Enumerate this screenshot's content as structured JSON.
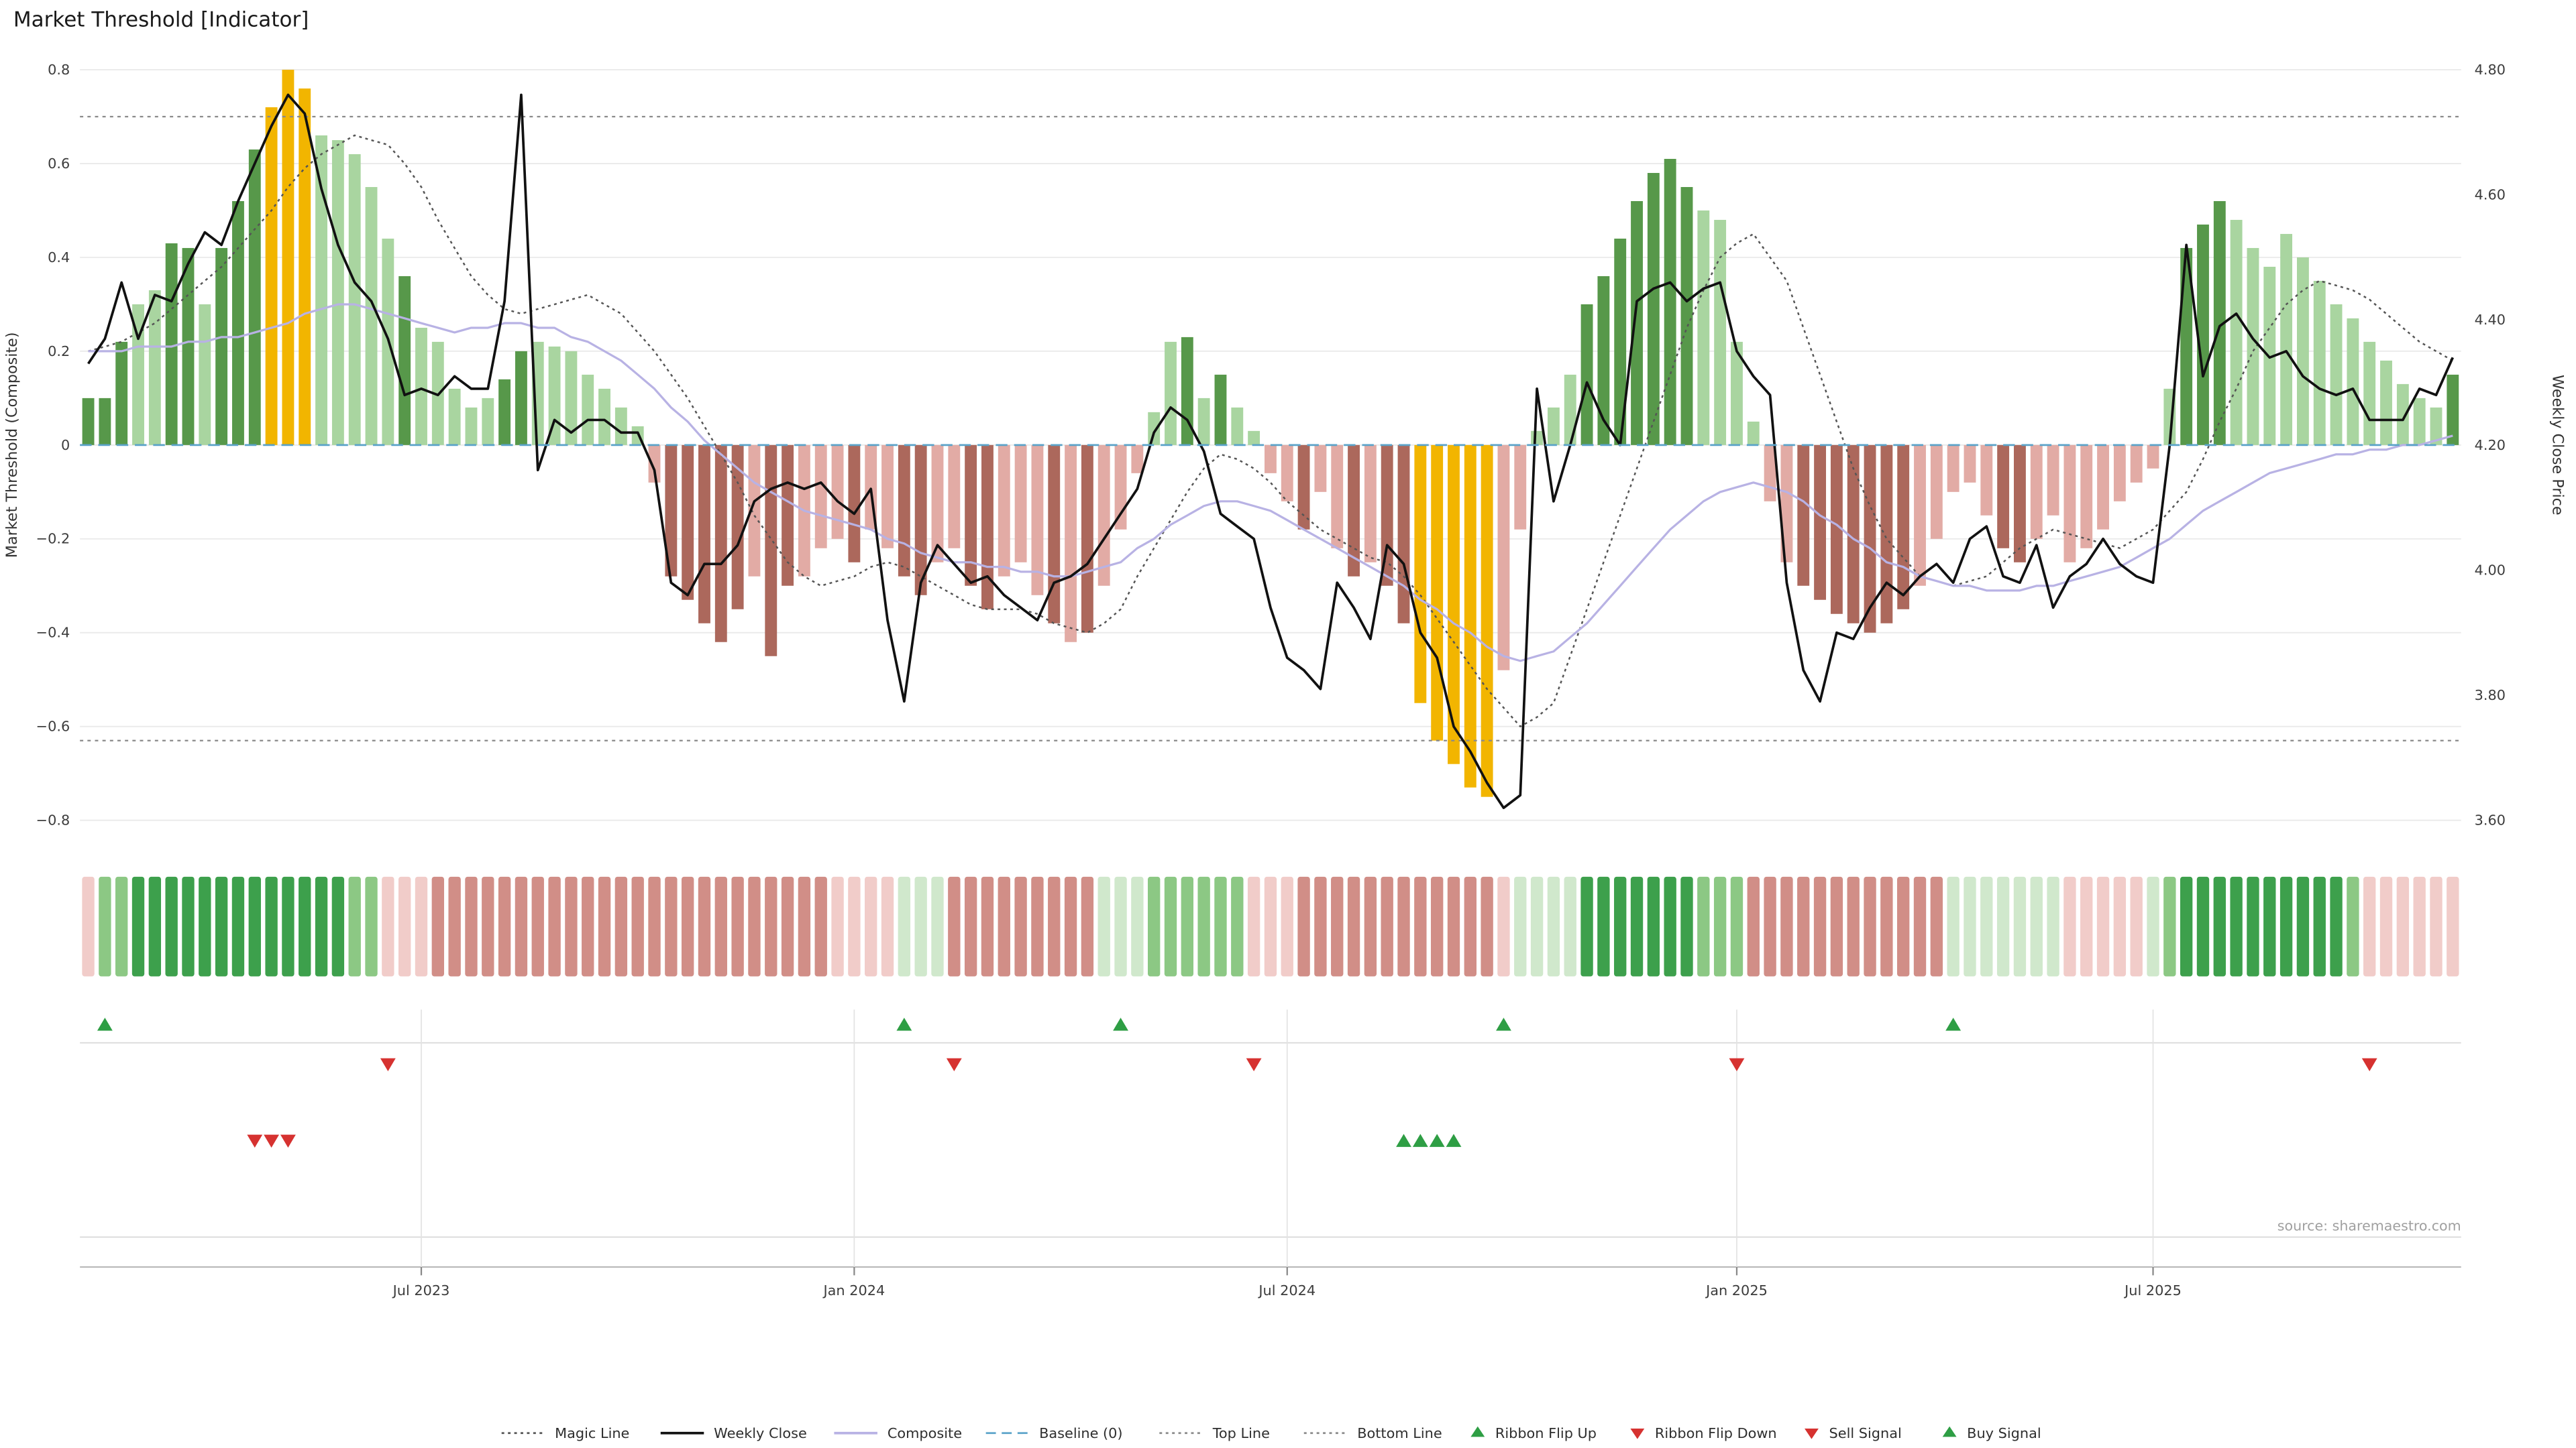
{
  "title": "Market Threshold [Indicator]",
  "source": "source: sharemaestro.com",
  "axes": {
    "left_label": "Market Threshold (Composite)",
    "right_label": "Weekly Close Price",
    "left_ticks": [
      -0.8,
      -0.6,
      -0.4,
      -0.2,
      0,
      0.2,
      0.4,
      0.6,
      0.8
    ],
    "right_ticks": [
      "3.60",
      "3.80",
      "4.00",
      "4.20",
      "4.40",
      "4.60",
      "4.80"
    ],
    "x_ticks": [
      {
        "i": 20,
        "label": "Jul 2023"
      },
      {
        "i": 46,
        "label": "Jan 2024"
      },
      {
        "i": 72,
        "label": "Jul 2024"
      },
      {
        "i": 99,
        "label": "Jan 2025"
      },
      {
        "i": 124,
        "label": "Jul 2025"
      }
    ]
  },
  "colors": {
    "bars": {
      "g1": "#a9d5a0",
      "g2": "#57984a",
      "au": "#f2b500",
      "r1": "#e2aba5",
      "r2": "#ac685c"
    },
    "ribbon": {
      "p": "#f1ccc9",
      "R": "#d18e87",
      "g": "#d0e8cc",
      "G": "#8cc884",
      "K": "#3da04c"
    },
    "lines": {
      "weekly_close": "#111111",
      "composite": "#b8b2e4",
      "magic": "#555555",
      "baseline": "#5ba3c9",
      "top_bottom": "#8a8a8a"
    },
    "signals": {
      "up": "#2e9e44",
      "down": "#d63230"
    },
    "grid": "#ebebeb"
  },
  "legend": [
    {
      "label": "Magic Line",
      "swatch": "dotted",
      "color": "#555555"
    },
    {
      "label": "Weekly Close",
      "swatch": "solid",
      "color": "#111111"
    },
    {
      "label": "Composite",
      "swatch": "solid",
      "color": "#b8b2e4"
    },
    {
      "label": "Baseline (0)",
      "swatch": "dashed",
      "color": "#5ba3c9"
    },
    {
      "label": "Top Line",
      "swatch": "dotted",
      "color": "#8a8a8a"
    },
    {
      "label": "Bottom Line",
      "swatch": "dotted",
      "color": "#8a8a8a"
    },
    {
      "label": "Ribbon Flip Up",
      "swatch": "triangle-up",
      "color": "#2e9e44"
    },
    {
      "label": "Ribbon Flip Down",
      "swatch": "triangle-down",
      "color": "#d63230"
    },
    {
      "label": "Sell Signal",
      "swatch": "triangle-down",
      "color": "#d63230"
    },
    {
      "label": "Buy Signal",
      "swatch": "triangle-up",
      "color": "#2e9e44"
    }
  ],
  "chart_data": {
    "type": "bar",
    "title": "Market Threshold [Indicator]",
    "xlabel": "",
    "ylabel_left": "Market Threshold (Composite)",
    "ylabel_right": "Weekly Close Price",
    "ylim_left": [
      -0.8,
      0.8
    ],
    "ylim_right": [
      3.6,
      4.8
    ],
    "x_tick_labels": [
      "Jul 2023",
      "Jan 2024",
      "Jul 2024",
      "Jan 2025",
      "Jul 2025"
    ],
    "ref_lines": {
      "baseline": 0,
      "top_line": 0.7,
      "bottom_line": -0.63
    },
    "threshold_bars": {
      "values": [
        0.1,
        0.1,
        0.22,
        0.3,
        0.33,
        0.43,
        0.42,
        0.3,
        0.42,
        0.52,
        0.63,
        0.72,
        0.8,
        0.76,
        0.66,
        0.65,
        0.62,
        0.55,
        0.44,
        0.36,
        0.25,
        0.22,
        0.12,
        0.08,
        0.1,
        0.14,
        0.2,
        0.22,
        0.21,
        0.2,
        0.15,
        0.12,
        0.08,
        0.04,
        -0.08,
        -0.28,
        -0.33,
        -0.38,
        -0.42,
        -0.35,
        -0.28,
        -0.45,
        -0.3,
        -0.28,
        -0.22,
        -0.2,
        -0.25,
        -0.18,
        -0.22,
        -0.28,
        -0.32,
        -0.25,
        -0.22,
        -0.3,
        -0.35,
        -0.28,
        -0.25,
        -0.32,
        -0.38,
        -0.42,
        -0.4,
        -0.3,
        -0.18,
        -0.06,
        0.07,
        0.22,
        0.23,
        0.1,
        0.15,
        0.08,
        0.03,
        -0.06,
        -0.12,
        -0.18,
        -0.1,
        -0.22,
        -0.28,
        -0.25,
        -0.3,
        -0.38,
        -0.55,
        -0.63,
        -0.68,
        -0.73,
        -0.75,
        -0.48,
        -0.18,
        0.03,
        0.08,
        0.15,
        0.3,
        0.36,
        0.44,
        0.52,
        0.58,
        0.61,
        0.55,
        0.5,
        0.48,
        0.22,
        0.05,
        -0.12,
        -0.25,
        -0.3,
        -0.33,
        -0.36,
        -0.38,
        -0.4,
        -0.38,
        -0.35,
        -0.3,
        -0.2,
        -0.1,
        -0.08,
        -0.15,
        -0.22,
        -0.25,
        -0.2,
        -0.15,
        -0.25,
        -0.22,
        -0.18,
        -0.12,
        -0.08,
        -0.05,
        0.12,
        0.42,
        0.47,
        0.52,
        0.48,
        0.42,
        0.38,
        0.45,
        0.4,
        0.35,
        0.3,
        0.27,
        0.22,
        0.18,
        0.13,
        0.1,
        0.08,
        0.15
      ],
      "colors": [
        "g2",
        "g2",
        "g2",
        "g1",
        "g1",
        "g2",
        "g2",
        "g1",
        "g2",
        "g2",
        "g2",
        "au",
        "au",
        "au",
        "g1",
        "g1",
        "g1",
        "g1",
        "g1",
        "g2",
        "g1",
        "g1",
        "g1",
        "g1",
        "g1",
        "g2",
        "g2",
        "g1",
        "g1",
        "g1",
        "g1",
        "g1",
        "g1",
        "g1",
        "r1",
        "r2",
        "r2",
        "r2",
        "r2",
        "r2",
        "r1",
        "r2",
        "r2",
        "r1",
        "r1",
        "r1",
        "r2",
        "r1",
        "r1",
        "r2",
        "r2",
        "r1",
        "r1",
        "r2",
        "r2",
        "r1",
        "r1",
        "r1",
        "r2",
        "r1",
        "r2",
        "r1",
        "r1",
        "r1",
        "g1",
        "g1",
        "g2",
        "g1",
        "g2",
        "g1",
        "g1",
        "r1",
        "r1",
        "r2",
        "r1",
        "r1",
        "r2",
        "r1",
        "r2",
        "r2",
        "au",
        "au",
        "au",
        "au",
        "au",
        "r1",
        "r1",
        "g1",
        "g1",
        "g1",
        "g2",
        "g2",
        "g2",
        "g2",
        "g2",
        "g2",
        "g2",
        "g1",
        "g1",
        "g1",
        "g1",
        "r1",
        "r1",
        "r2",
        "r2",
        "r2",
        "r2",
        "r2",
        "r2",
        "r2",
        "r1",
        "r1",
        "r1",
        "r1",
        "r1",
        "r2",
        "r2",
        "r1",
        "r1",
        "r1",
        "r1",
        "r1",
        "r1",
        "r1",
        "r1",
        "g1",
        "g2",
        "g2",
        "g2",
        "g1",
        "g1",
        "g1",
        "g1",
        "g1",
        "g1",
        "g1",
        "g1",
        "g1",
        "g1",
        "g1",
        "g1",
        "g1",
        "g2"
      ]
    },
    "series": [
      {
        "name": "Weekly Close",
        "axis": "right",
        "values": [
          4.33,
          4.37,
          4.46,
          4.37,
          4.44,
          4.43,
          4.49,
          4.54,
          4.52,
          4.59,
          4.65,
          4.71,
          4.76,
          4.73,
          4.61,
          4.52,
          4.46,
          4.43,
          4.37,
          4.28,
          4.29,
          4.28,
          4.31,
          4.29,
          4.29,
          4.43,
          4.76,
          4.16,
          4.24,
          4.22,
          4.24,
          4.24,
          4.22,
          4.22,
          4.16,
          3.98,
          3.96,
          4.01,
          4.01,
          4.04,
          4.11,
          4.13,
          4.14,
          4.13,
          4.14,
          4.11,
          4.09,
          4.13,
          3.92,
          3.79,
          3.98,
          4.04,
          4.01,
          3.98,
          3.99,
          3.96,
          3.94,
          3.92,
          3.98,
          3.99,
          4.01,
          4.05,
          4.09,
          4.13,
          4.22,
          4.26,
          4.24,
          4.19,
          4.09,
          4.07,
          4.05,
          3.94,
          3.86,
          3.84,
          3.81,
          3.98,
          3.94,
          3.89,
          4.04,
          4.01,
          3.9,
          3.86,
          3.75,
          3.71,
          3.66,
          3.62,
          3.64,
          4.29,
          4.11,
          4.2,
          4.3,
          4.24,
          4.2,
          4.43,
          4.45,
          4.46,
          4.43,
          4.45,
          4.46,
          4.35,
          4.31,
          4.28,
          3.98,
          3.84,
          3.79,
          3.9,
          3.89,
          3.94,
          3.98,
          3.96,
          3.99,
          4.01,
          3.98,
          4.05,
          4.07,
          3.99,
          3.98,
          4.04,
          3.94,
          3.99,
          4.01,
          4.05,
          4.01,
          3.99,
          3.98,
          4.2,
          4.52,
          4.31,
          4.39,
          4.41,
          4.37,
          4.34,
          4.35,
          4.31,
          4.29,
          4.28,
          4.29,
          4.24,
          4.24,
          4.24,
          4.29,
          4.28,
          4.34
        ]
      },
      {
        "name": "Composite",
        "axis": "left",
        "values": [
          0.2,
          0.2,
          0.2,
          0.21,
          0.21,
          0.21,
          0.22,
          0.22,
          0.23,
          0.23,
          0.24,
          0.25,
          0.26,
          0.28,
          0.29,
          0.3,
          0.3,
          0.29,
          0.28,
          0.27,
          0.26,
          0.25,
          0.24,
          0.25,
          0.25,
          0.26,
          0.26,
          0.25,
          0.25,
          0.23,
          0.22,
          0.2,
          0.18,
          0.15,
          0.12,
          0.08,
          0.05,
          0.01,
          -0.02,
          -0.05,
          -0.08,
          -0.1,
          -0.12,
          -0.14,
          -0.15,
          -0.16,
          -0.17,
          -0.18,
          -0.2,
          -0.21,
          -0.23,
          -0.24,
          -0.25,
          -0.25,
          -0.26,
          -0.26,
          -0.27,
          -0.27,
          -0.28,
          -0.28,
          -0.27,
          -0.26,
          -0.25,
          -0.22,
          -0.2,
          -0.17,
          -0.15,
          -0.13,
          -0.12,
          -0.12,
          -0.13,
          -0.14,
          -0.16,
          -0.18,
          -0.2,
          -0.22,
          -0.24,
          -0.26,
          -0.28,
          -0.3,
          -0.33,
          -0.35,
          -0.38,
          -0.4,
          -0.43,
          -0.45,
          -0.46,
          -0.45,
          -0.44,
          -0.41,
          -0.38,
          -0.34,
          -0.3,
          -0.26,
          -0.22,
          -0.18,
          -0.15,
          -0.12,
          -0.1,
          -0.09,
          -0.08,
          -0.09,
          -0.1,
          -0.12,
          -0.15,
          -0.17,
          -0.2,
          -0.22,
          -0.25,
          -0.26,
          -0.28,
          -0.29,
          -0.3,
          -0.3,
          -0.31,
          -0.31,
          -0.31,
          -0.3,
          -0.3,
          -0.29,
          -0.28,
          -0.27,
          -0.26,
          -0.24,
          -0.22,
          -0.2,
          -0.17,
          -0.14,
          -0.12,
          -0.1,
          -0.08,
          -0.06,
          -0.05,
          -0.04,
          -0.03,
          -0.02,
          -0.02,
          -0.01,
          -0.01,
          0.0,
          0.0,
          0.01,
          0.02
        ]
      },
      {
        "name": "Magic Line",
        "axis": "left",
        "values": [
          0.2,
          0.21,
          0.22,
          0.24,
          0.26,
          0.29,
          0.32,
          0.35,
          0.38,
          0.42,
          0.46,
          0.5,
          0.55,
          0.59,
          0.62,
          0.64,
          0.66,
          0.65,
          0.64,
          0.6,
          0.55,
          0.48,
          0.42,
          0.36,
          0.32,
          0.29,
          0.28,
          0.29,
          0.3,
          0.31,
          0.32,
          0.3,
          0.28,
          0.24,
          0.2,
          0.15,
          0.1,
          0.04,
          -0.02,
          -0.08,
          -0.15,
          -0.2,
          -0.25,
          -0.28,
          -0.3,
          -0.29,
          -0.28,
          -0.26,
          -0.25,
          -0.26,
          -0.28,
          -0.3,
          -0.32,
          -0.34,
          -0.35,
          -0.35,
          -0.35,
          -0.36,
          -0.38,
          -0.39,
          -0.4,
          -0.38,
          -0.35,
          -0.28,
          -0.22,
          -0.16,
          -0.1,
          -0.05,
          -0.02,
          -0.03,
          -0.05,
          -0.08,
          -0.12,
          -0.15,
          -0.18,
          -0.2,
          -0.22,
          -0.24,
          -0.25,
          -0.28,
          -0.32,
          -0.37,
          -0.42,
          -0.47,
          -0.52,
          -0.56,
          -0.6,
          -0.58,
          -0.55,
          -0.45,
          -0.35,
          -0.25,
          -0.15,
          -0.05,
          0.05,
          0.15,
          0.25,
          0.33,
          0.4,
          0.43,
          0.45,
          0.4,
          0.35,
          0.25,
          0.15,
          0.05,
          -0.05,
          -0.13,
          -0.2,
          -0.24,
          -0.28,
          -0.29,
          -0.3,
          -0.29,
          -0.28,
          -0.25,
          -0.22,
          -0.2,
          -0.18,
          -0.19,
          -0.2,
          -0.21,
          -0.22,
          -0.2,
          -0.18,
          -0.14,
          -0.1,
          -0.03,
          0.05,
          0.12,
          0.2,
          0.25,
          0.3,
          0.33,
          0.35,
          0.34,
          0.33,
          0.31,
          0.28,
          0.25,
          0.22,
          0.2,
          0.18
        ]
      }
    ],
    "ribbon": [
      "p",
      "G",
      "G",
      "K",
      "K",
      "K",
      "K",
      "K",
      "K",
      "K",
      "K",
      "K",
      "K",
      "K",
      "K",
      "K",
      "G",
      "G",
      "p",
      "p",
      "p",
      "R",
      "R",
      "R",
      "R",
      "R",
      "R",
      "R",
      "R",
      "R",
      "R",
      "R",
      "R",
      "R",
      "R",
      "R",
      "R",
      "R",
      "R",
      "R",
      "R",
      "R",
      "R",
      "R",
      "R",
      "p",
      "p",
      "p",
      "p",
      "g",
      "g",
      "g",
      "R",
      "R",
      "R",
      "R",
      "R",
      "R",
      "R",
      "R",
      "R",
      "g",
      "g",
      "g",
      "G",
      "G",
      "G",
      "G",
      "G",
      "G",
      "p",
      "p",
      "p",
      "R",
      "R",
      "R",
      "R",
      "R",
      "R",
      "R",
      "R",
      "R",
      "R",
      "R",
      "R",
      "p",
      "g",
      "g",
      "g",
      "g",
      "K",
      "K",
      "K",
      "K",
      "K",
      "K",
      "K",
      "G",
      "G",
      "G",
      "R",
      "R",
      "R",
      "R",
      "R",
      "R",
      "R",
      "R",
      "R",
      "R",
      "R",
      "R",
      "g",
      "g",
      "g",
      "g",
      "g",
      "g",
      "g",
      "p",
      "p",
      "p",
      "p",
      "p",
      "g",
      "G",
      "K",
      "K",
      "K",
      "K",
      "K",
      "K",
      "K",
      "K",
      "K",
      "K",
      "G",
      "p",
      "p",
      "p",
      "p",
      "p",
      "p"
    ],
    "signals": {
      "ribbon_flip_up": [
        1,
        49,
        62,
        85,
        112
      ],
      "ribbon_flip_down": [
        18,
        52,
        70,
        99,
        137
      ],
      "sell": [
        10,
        11,
        12
      ],
      "buy": [
        79,
        80,
        81,
        82
      ]
    }
  }
}
